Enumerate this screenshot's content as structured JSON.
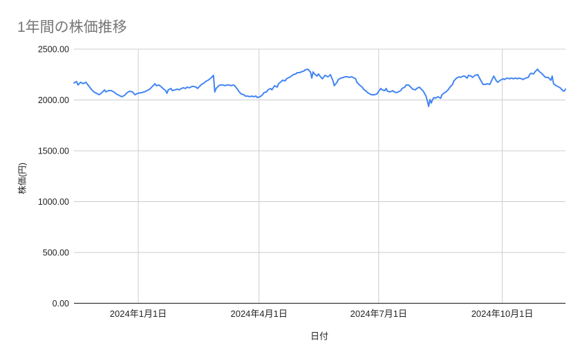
{
  "chart_data": {
    "type": "line",
    "title": "1年間の株価推移",
    "xlabel": "日付",
    "ylabel": "株価(円)",
    "legend": "none",
    "grid": true,
    "x_unit": "days_from_series_start",
    "x_domain": [
      0,
      370
    ],
    "ylim": [
      0,
      2500
    ],
    "y_ticks": [
      {
        "value": 0,
        "label": "0.00"
      },
      {
        "value": 500,
        "label": "500.00"
      },
      {
        "value": 1000,
        "label": "1000.00"
      },
      {
        "value": 1500,
        "label": "1500.00"
      },
      {
        "value": 2000,
        "label": "2000.00"
      },
      {
        "value": 2500,
        "label": "2500.00"
      }
    ],
    "x_ticks": [
      {
        "day": 48.4,
        "label": "2024年1月1日"
      },
      {
        "day": 139.3,
        "label": "2024年4月1日"
      },
      {
        "day": 229.4,
        "label": "2024年7月1日"
      },
      {
        "day": 322.4,
        "label": "2024年10月1日"
      }
    ],
    "colors": {
      "line": "#4285f4",
      "grid": "#cccccc",
      "axis_line": "#333333",
      "tick_label": "#222222",
      "axis_title": "#222222",
      "title": "#757575",
      "background": "#ffffff"
    },
    "series": [
      {
        "name": "株価",
        "color": "#4285f4",
        "points": [
          [
            0,
            2167
          ],
          [
            2,
            2181
          ],
          [
            3,
            2147
          ],
          [
            5,
            2174
          ],
          [
            7,
            2160
          ],
          [
            9,
            2174
          ],
          [
            11,
            2140
          ],
          [
            13,
            2106
          ],
          [
            15,
            2079
          ],
          [
            17,
            2065
          ],
          [
            19,
            2051
          ],
          [
            21,
            2072
          ],
          [
            23,
            2099
          ],
          [
            24,
            2079
          ],
          [
            26,
            2092
          ],
          [
            28,
            2092
          ],
          [
            30,
            2079
          ],
          [
            32,
            2058
          ],
          [
            34,
            2045
          ],
          [
            36,
            2031
          ],
          [
            38,
            2045
          ],
          [
            40,
            2072
          ],
          [
            42,
            2086
          ],
          [
            44,
            2079
          ],
          [
            46,
            2051
          ],
          [
            48,
            2065
          ],
          [
            51,
            2072
          ],
          [
            53,
            2079
          ],
          [
            55,
            2092
          ],
          [
            57,
            2106
          ],
          [
            59,
            2133
          ],
          [
            61,
            2160
          ],
          [
            62,
            2140
          ],
          [
            64,
            2147
          ],
          [
            66,
            2126
          ],
          [
            67,
            2113
          ],
          [
            69,
            2092
          ],
          [
            70,
            2065
          ],
          [
            71,
            2099
          ],
          [
            73,
            2113
          ],
          [
            74,
            2092
          ],
          [
            76,
            2099
          ],
          [
            78,
            2106
          ],
          [
            79,
            2099
          ],
          [
            81,
            2113
          ],
          [
            82,
            2120
          ],
          [
            84,
            2113
          ],
          [
            85,
            2126
          ],
          [
            87,
            2120
          ],
          [
            89,
            2133
          ],
          [
            90,
            2133
          ],
          [
            92,
            2126
          ],
          [
            93,
            2113
          ],
          [
            95,
            2140
          ],
          [
            96,
            2153
          ],
          [
            98,
            2167
          ],
          [
            99,
            2181
          ],
          [
            101,
            2194
          ],
          [
            103,
            2215
          ],
          [
            104,
            2228
          ],
          [
            105,
            2242
          ],
          [
            106,
            2079
          ],
          [
            107,
            2113
          ],
          [
            109,
            2140
          ],
          [
            110,
            2147
          ],
          [
            112,
            2147
          ],
          [
            114,
            2140
          ],
          [
            115,
            2147
          ],
          [
            117,
            2147
          ],
          [
            118,
            2140
          ],
          [
            120,
            2147
          ],
          [
            121,
            2140
          ],
          [
            123,
            2106
          ],
          [
            124,
            2086
          ],
          [
            126,
            2058
          ],
          [
            128,
            2051
          ],
          [
            129,
            2038
          ],
          [
            131,
            2038
          ],
          [
            132,
            2031
          ],
          [
            134,
            2038
          ],
          [
            135,
            2031
          ],
          [
            137,
            2038
          ],
          [
            138,
            2024
          ],
          [
            140,
            2031
          ],
          [
            142,
            2051
          ],
          [
            143,
            2072
          ],
          [
            145,
            2079
          ],
          [
            146,
            2099
          ],
          [
            148,
            2113
          ],
          [
            149,
            2099
          ],
          [
            151,
            2140
          ],
          [
            153,
            2126
          ],
          [
            154,
            2160
          ],
          [
            156,
            2181
          ],
          [
            157,
            2194
          ],
          [
            159,
            2188
          ],
          [
            160,
            2208
          ],
          [
            162,
            2222
          ],
          [
            163,
            2228
          ],
          [
            165,
            2249
          ],
          [
            167,
            2256
          ],
          [
            168,
            2269
          ],
          [
            170,
            2269
          ],
          [
            171,
            2276
          ],
          [
            173,
            2283
          ],
          [
            174,
            2296
          ],
          [
            176,
            2303
          ],
          [
            178,
            2276
          ],
          [
            179,
            2215
          ],
          [
            180,
            2276
          ],
          [
            181,
            2256
          ],
          [
            183,
            2235
          ],
          [
            184,
            2256
          ],
          [
            186,
            2222
          ],
          [
            187,
            2208
          ],
          [
            189,
            2242
          ],
          [
            191,
            2228
          ],
          [
            192,
            2235
          ],
          [
            193,
            2249
          ],
          [
            195,
            2188
          ],
          [
            196,
            2140
          ],
          [
            198,
            2174
          ],
          [
            199,
            2201
          ],
          [
            201,
            2215
          ],
          [
            203,
            2222
          ],
          [
            204,
            2228
          ],
          [
            206,
            2228
          ],
          [
            207,
            2222
          ],
          [
            209,
            2228
          ],
          [
            210,
            2222
          ],
          [
            212,
            2208
          ],
          [
            213,
            2174
          ],
          [
            215,
            2147
          ],
          [
            217,
            2126
          ],
          [
            218,
            2106
          ],
          [
            220,
            2086
          ],
          [
            221,
            2072
          ],
          [
            223,
            2058
          ],
          [
            224,
            2051
          ],
          [
            226,
            2051
          ],
          [
            228,
            2058
          ],
          [
            229,
            2079
          ],
          [
            231,
            2113
          ],
          [
            232,
            2099
          ],
          [
            234,
            2092
          ],
          [
            235,
            2113
          ],
          [
            236,
            2086
          ],
          [
            238,
            2079
          ],
          [
            240,
            2092
          ],
          [
            241,
            2079
          ],
          [
            243,
            2072
          ],
          [
            244,
            2079
          ],
          [
            246,
            2092
          ],
          [
            247,
            2113
          ],
          [
            249,
            2126
          ],
          [
            250,
            2147
          ],
          [
            252,
            2147
          ],
          [
            254,
            2120
          ],
          [
            255,
            2106
          ],
          [
            257,
            2099
          ],
          [
            258,
            2113
          ],
          [
            260,
            2126
          ],
          [
            261,
            2113
          ],
          [
            263,
            2086
          ],
          [
            265,
            2038
          ],
          [
            266,
            1990
          ],
          [
            267,
            1936
          ],
          [
            268,
            2004
          ],
          [
            269,
            1970
          ],
          [
            270,
            2004
          ],
          [
            271,
            2024
          ],
          [
            272,
            2017
          ],
          [
            274,
            2031
          ],
          [
            276,
            2017
          ],
          [
            277,
            2051
          ],
          [
            279,
            2072
          ],
          [
            280,
            2079
          ],
          [
            282,
            2106
          ],
          [
            283,
            2126
          ],
          [
            285,
            2153
          ],
          [
            286,
            2188
          ],
          [
            288,
            2215
          ],
          [
            290,
            2228
          ],
          [
            291,
            2222
          ],
          [
            293,
            2235
          ],
          [
            294,
            2235
          ],
          [
            296,
            2215
          ],
          [
            297,
            2242
          ],
          [
            299,
            2235
          ],
          [
            300,
            2222
          ],
          [
            302,
            2242
          ],
          [
            304,
            2249
          ],
          [
            305,
            2222
          ],
          [
            307,
            2174
          ],
          [
            308,
            2153
          ],
          [
            310,
            2153
          ],
          [
            311,
            2160
          ],
          [
            313,
            2153
          ],
          [
            314,
            2181
          ],
          [
            316,
            2235
          ],
          [
            318,
            2188
          ],
          [
            319,
            2174
          ],
          [
            321,
            2194
          ],
          [
            323,
            2208
          ],
          [
            324,
            2201
          ],
          [
            326,
            2215
          ],
          [
            328,
            2208
          ],
          [
            329,
            2215
          ],
          [
            331,
            2208
          ],
          [
            332,
            2215
          ],
          [
            334,
            2208
          ],
          [
            335,
            2215
          ],
          [
            337,
            2208
          ],
          [
            338,
            2201
          ],
          [
            340,
            2215
          ],
          [
            342,
            2222
          ],
          [
            343,
            2249
          ],
          [
            344,
            2262
          ],
          [
            346,
            2256
          ],
          [
            347,
            2276
          ],
          [
            349,
            2303
          ],
          [
            350,
            2283
          ],
          [
            352,
            2262
          ],
          [
            354,
            2235
          ],
          [
            355,
            2222
          ],
          [
            357,
            2222
          ],
          [
            358,
            2208
          ],
          [
            359,
            2194
          ],
          [
            360,
            2235
          ],
          [
            361,
            2160
          ],
          [
            363,
            2140
          ],
          [
            364,
            2133
          ],
          [
            366,
            2120
          ],
          [
            368,
            2092
          ],
          [
            369,
            2086
          ],
          [
            370,
            2106
          ]
        ]
      }
    ]
  }
}
